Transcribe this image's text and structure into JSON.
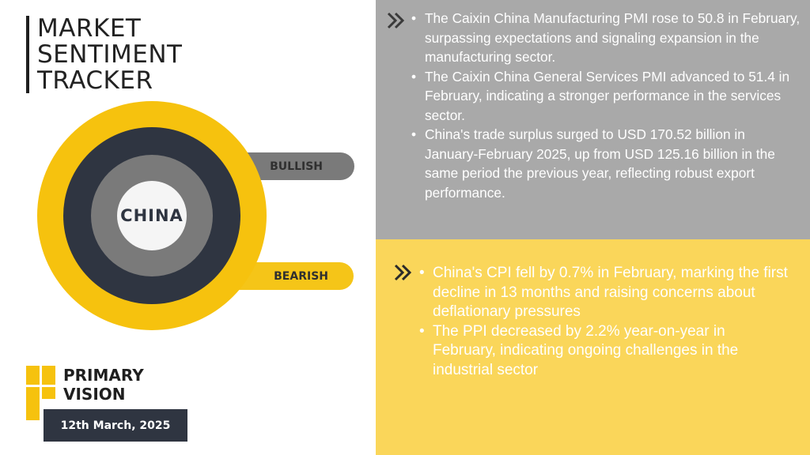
{
  "title": {
    "line1": "MARKET",
    "line2": "SENTIMENT",
    "line3": "TRACKER"
  },
  "gauge": {
    "center_label": "CHINA",
    "bullish_label": "BULLISH",
    "bearish_label": "BEARISH"
  },
  "brand": {
    "line1": "PRIMARY",
    "line2": "VISION",
    "date": "12th March, 2025"
  },
  "bullish_points": [
    "The Caixin China Manufacturing PMI rose to 50.8 in February, surpassing expectations and signaling expansion in the manufacturing sector.",
    "The Caixin China General Services PMI advanced to 51.4 in February, indicating a stronger performance in the services sector.",
    "China's trade surplus surged to USD 170.52 billion in January-February 2025, up from USD 125.16 billion in the same period the previous year, reflecting robust export performance."
  ],
  "bearish_points": [
    "China's CPI fell by 0.7% in February, marking the first decline in 13 months and raising concerns about deflationary pressures",
    "The PPI decreased by 2.2% year-on-year in February, indicating ongoing challenges in the industrial sector"
  ],
  "colors": {
    "yellow": "#f6c20e",
    "dark": "#2f3541",
    "grey": "#7a7a7a",
    "panel_grey": "#a9a9a9",
    "panel_yellow": "#fad65a"
  },
  "icons": {
    "top_marker": "double-chevron-right-icon",
    "bottom_marker": "double-chevron-right-icon"
  }
}
